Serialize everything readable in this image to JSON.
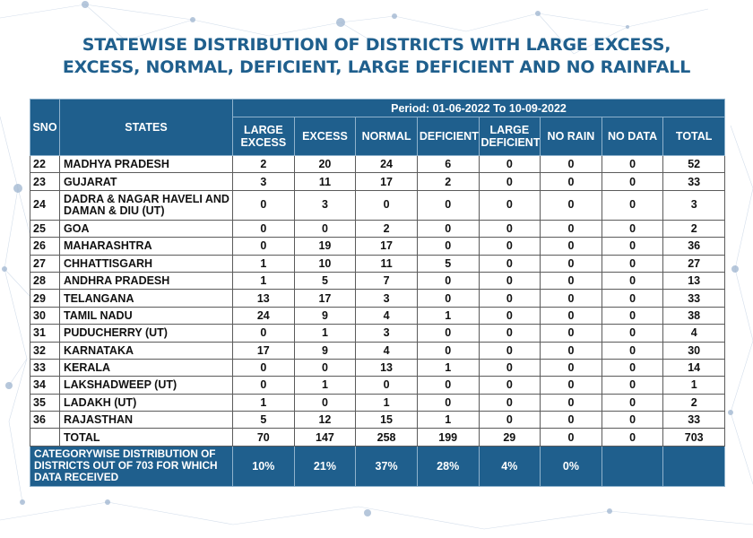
{
  "title": {
    "line1": "STATEWISE DISTRIBUTION OF DISTRICTS WITH LARGE EXCESS,",
    "line2": "EXCESS, NORMAL, DEFICIENT, LARGE DEFICIENT AND NO RAINFALL"
  },
  "header": {
    "sno": "SNO",
    "states": "STATES",
    "period": "Period: 01-06-2022 To 10-09-2022",
    "cols": [
      "LARGE EXCESS",
      "EXCESS",
      "NORMAL",
      "DEFICIENT",
      "LARGE DEFICIENT",
      "NO RAIN",
      "NO DATA",
      "TOTAL"
    ]
  },
  "rows": [
    {
      "sno": "22",
      "state": "MADHYA PRADESH",
      "v": [
        "2",
        "20",
        "24",
        "6",
        "0",
        "0",
        "0",
        "52"
      ]
    },
    {
      "sno": "23",
      "state": "GUJARAT",
      "v": [
        "3",
        "11",
        "17",
        "2",
        "0",
        "0",
        "0",
        "33"
      ]
    },
    {
      "sno": "24",
      "state": "DADRA & NAGAR HAVELI AND DAMAN & DIU (UT)",
      "v": [
        "0",
        "3",
        "0",
        "0",
        "0",
        "0",
        "0",
        "3"
      ]
    },
    {
      "sno": "25",
      "state": "GOA",
      "v": [
        "0",
        "0",
        "2",
        "0",
        "0",
        "0",
        "0",
        "2"
      ]
    },
    {
      "sno": "26",
      "state": "MAHARASHTRA",
      "v": [
        "0",
        "19",
        "17",
        "0",
        "0",
        "0",
        "0",
        "36"
      ]
    },
    {
      "sno": "27",
      "state": "CHHATTISGARH",
      "v": [
        "1",
        "10",
        "11",
        "5",
        "0",
        "0",
        "0",
        "27"
      ]
    },
    {
      "sno": "28",
      "state": "ANDHRA PRADESH",
      "v": [
        "1",
        "5",
        "7",
        "0",
        "0",
        "0",
        "0",
        "13"
      ]
    },
    {
      "sno": "29",
      "state": "TELANGANA",
      "v": [
        "13",
        "17",
        "3",
        "0",
        "0",
        "0",
        "0",
        "33"
      ]
    },
    {
      "sno": "30",
      "state": "TAMIL NADU",
      "v": [
        "24",
        "9",
        "4",
        "1",
        "0",
        "0",
        "0",
        "38"
      ]
    },
    {
      "sno": "31",
      "state": "PUDUCHERRY (UT)",
      "v": [
        "0",
        "1",
        "3",
        "0",
        "0",
        "0",
        "0",
        "4"
      ]
    },
    {
      "sno": "32",
      "state": "KARNATAKA",
      "v": [
        "17",
        "9",
        "4",
        "0",
        "0",
        "0",
        "0",
        "30"
      ]
    },
    {
      "sno": "33",
      "state": "KERALA",
      "v": [
        "0",
        "0",
        "13",
        "1",
        "0",
        "0",
        "0",
        "14"
      ]
    },
    {
      "sno": "34",
      "state": "LAKSHADWEEP (UT)",
      "v": [
        "0",
        "1",
        "0",
        "0",
        "0",
        "0",
        "0",
        "1"
      ]
    },
    {
      "sno": "35",
      "state": "LADAKH (UT)",
      "v": [
        "1",
        "0",
        "1",
        "0",
        "0",
        "0",
        "0",
        "2"
      ]
    },
    {
      "sno": "36",
      "state": "RAJASTHAN",
      "v": [
        "5",
        "12",
        "15",
        "1",
        "0",
        "0",
        "0",
        "33"
      ]
    }
  ],
  "total": {
    "label": "TOTAL",
    "v": [
      "70",
      "147",
      "258",
      "199",
      "29",
      "0",
      "0",
      "703"
    ]
  },
  "footer": {
    "label": "CATEGORYWISE DISTRIBUTION OF DISTRICTS OUT OF 703 FOR WHICH DATA RECEIVED",
    "v": [
      "10%",
      "21%",
      "37%",
      "28%",
      "4%",
      "0%"
    ]
  },
  "colors": {
    "header_bg": "#1f5f8d",
    "title": "#1f5f8d"
  }
}
